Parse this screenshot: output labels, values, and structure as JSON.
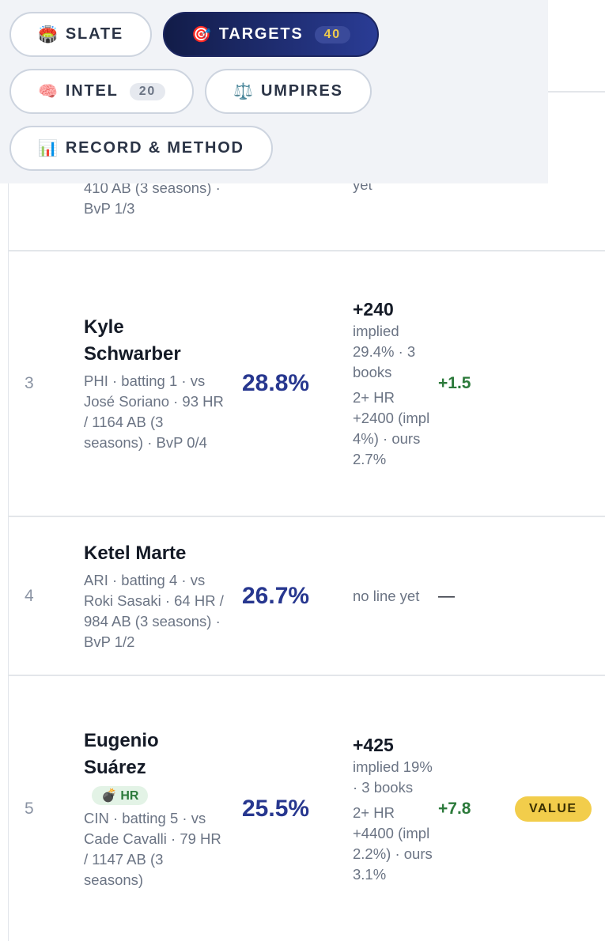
{
  "tabs": [
    {
      "icon": "🏟️",
      "label": "SLATE"
    },
    {
      "icon": "🎯",
      "label": "TARGETS",
      "count": "40",
      "active": true
    },
    {
      "icon": "🧠",
      "label": "INTEL",
      "count": "20"
    },
    {
      "icon": "⚖️",
      "label": "UMPIRES"
    },
    {
      "icon": "📊",
      "label": "RECORD & METHOD"
    }
  ],
  "partial_row": {
    "detail": "410 AB (3 seasons) · BvP 1/3",
    "odds_note": "yet"
  },
  "rows": [
    {
      "rank": "3",
      "name": "Kyle Schwarber",
      "detail": "PHI · batting 1 · vs José Soriano · 93 HR / 1164 AB (3 seasons) · BvP 0/4",
      "prob": "28.8%",
      "odds": "+240",
      "odds_detail": "implied 29.4% · 3 books",
      "multi": "2+ HR +2400 (impl 4%) · ours 2.7%",
      "edge": "+1.5"
    },
    {
      "rank": "4",
      "name": "Ketel Marte",
      "detail": "ARI · batting 4 · vs Roki Sasaki · 64 HR / 984 AB (3 seasons) · BvP 1/2",
      "prob": "26.7%",
      "odds_note": "no line yet",
      "edge": "—"
    },
    {
      "rank": "5",
      "name": "Eugenio Suárez",
      "tag_icon": "💣",
      "tag": "HR",
      "detail": "CIN · batting 5 · vs Cade Cavalli · 79 HR / 1147 AB (3 seasons)",
      "prob": "25.5%",
      "odds": "+425",
      "odds_detail": "implied 19% · 3 books",
      "multi": "2+ HR +4400 (impl 2.2%) · ours 3.1%",
      "edge": "+7.8",
      "badge": "VALUE"
    }
  ]
}
